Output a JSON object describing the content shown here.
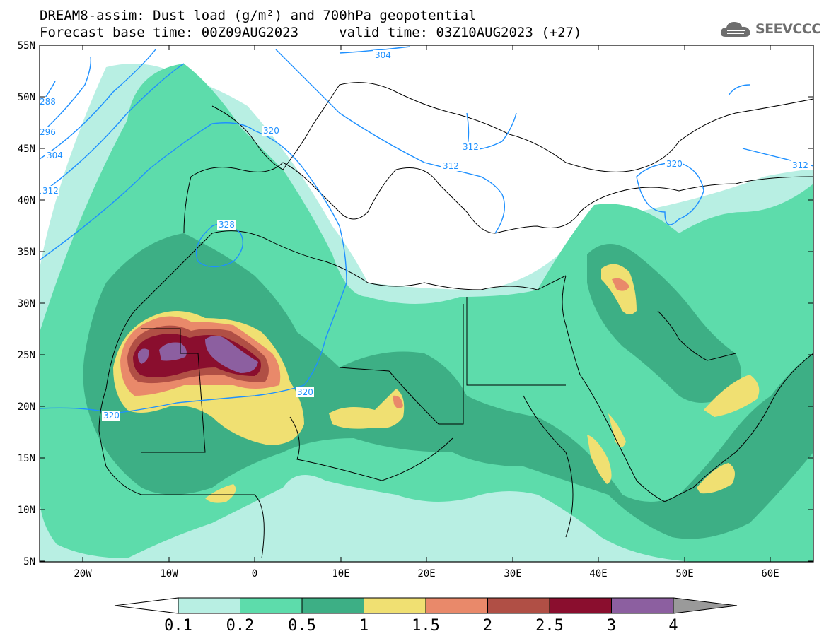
{
  "header": {
    "title_line1": "DREAM8-assim: Dust load (g/m²) and 700hPa geopotential",
    "title_line2": "Forecast base time: 00Z09AUG2023     valid time: 03Z10AUG2023 (+27)",
    "logo_text": "SEEVCCC"
  },
  "axes": {
    "lat_ticks": [
      "55N",
      "50N",
      "45N",
      "40N",
      "35N",
      "30N",
      "25N",
      "20N",
      "15N",
      "10N",
      "5N"
    ],
    "lon_ticks": [
      "20W",
      "10W",
      "0",
      "10E",
      "20E",
      "30E",
      "40E",
      "50E",
      "60E"
    ]
  },
  "contours": {
    "labels": [
      "288",
      "296",
      "304",
      "312",
      "320",
      "328",
      "320",
      "320",
      "312",
      "312",
      "304",
      "320",
      "312"
    ]
  },
  "colorbar": {
    "levels": [
      "0.1",
      "0.2",
      "0.5",
      "1",
      "1.5",
      "2",
      "2.5",
      "3",
      "4"
    ],
    "colors": [
      "#b8efe3",
      "#5ddcab",
      "#3daf85",
      "#f0e072",
      "#e9896a",
      "#b04f45",
      "#8a0e2e",
      "#8c5fa0"
    ],
    "under_color": "#ffffff",
    "over_color": "#9a9a9a"
  },
  "colors": {
    "geopotential": "#1e90ff",
    "border": "#000000"
  }
}
